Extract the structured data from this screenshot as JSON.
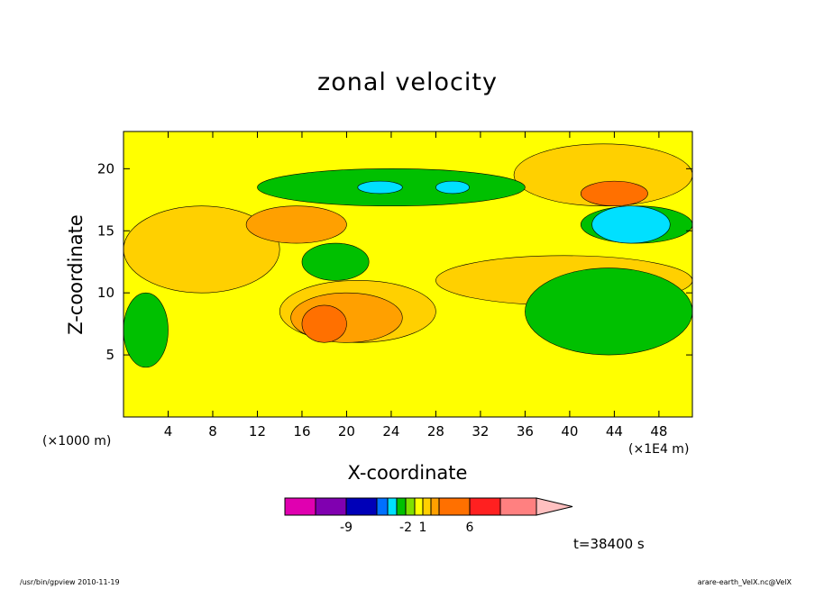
{
  "chart_data": {
    "type": "heatmap",
    "title": "zonal velocity",
    "xlabel": "X-coordinate",
    "ylabel": "Z-coordinate",
    "x_unit_label": "(×1E4 m)",
    "y_unit_label": "(×1000 m)",
    "xlim": [
      0,
      51
    ],
    "ylim": [
      0,
      23
    ],
    "x_ticks": [
      "4",
      "8",
      "12",
      "16",
      "20",
      "24",
      "28",
      "32",
      "36",
      "40",
      "44",
      "48"
    ],
    "y_ticks": [
      "5",
      "10",
      "15",
      "20"
    ],
    "colorbar": {
      "colors": [
        "#e000b0",
        "#8000b0",
        "#0000b8",
        "#0070ff",
        "#00e0ff",
        "#00c000",
        "#80e000",
        "#ffff00",
        "#ffd000",
        "#ffa000",
        "#ff7000",
        "#ff2020",
        "#ff8080",
        "#ffc0c0"
      ],
      "labels": [
        "-9",
        "-2",
        "1",
        "6"
      ]
    },
    "regions": [
      {
        "level": "0 to 1",
        "x": [
          0,
          51
        ],
        "z": [
          0,
          23
        ]
      },
      {
        "level": "1 to 2",
        "x": [
          0,
          14
        ],
        "z": [
          10,
          17
        ]
      },
      {
        "level": "1 to 2",
        "x": [
          14,
          28
        ],
        "z": [
          6,
          11
        ]
      },
      {
        "level": "1 to 2",
        "x": [
          28,
          51
        ],
        "z": [
          9,
          13
        ]
      },
      {
        "level": "1 to 2",
        "x": [
          35,
          51
        ],
        "z": [
          17,
          22
        ]
      },
      {
        "level": "2 to 3",
        "x": [
          11,
          20
        ],
        "z": [
          14,
          17
        ]
      },
      {
        "level": "2 to 3",
        "x": [
          15,
          25
        ],
        "z": [
          6,
          10
        ]
      },
      {
        "level": "3 to 4",
        "x": [
          16,
          20
        ],
        "z": [
          6,
          9
        ]
      },
      {
        "level": "3 to 4",
        "x": [
          41,
          47
        ],
        "z": [
          17,
          19
        ]
      },
      {
        "level": "-1 to 0",
        "x": [
          0,
          4
        ],
        "z": [
          4,
          10
        ]
      },
      {
        "level": "-1 to 0",
        "x": [
          36,
          51
        ],
        "z": [
          5,
          12
        ]
      },
      {
        "level": "-1 to 0",
        "x": [
          16,
          22
        ],
        "z": [
          11,
          14
        ]
      },
      {
        "level": "-1 to 0",
        "x": [
          12,
          36
        ],
        "z": [
          17,
          20
        ]
      },
      {
        "level": "-1 to 0",
        "x": [
          41,
          51
        ],
        "z": [
          14,
          17
        ]
      },
      {
        "level": "-2 to -1",
        "x": [
          42,
          49
        ],
        "z": [
          14,
          17
        ]
      },
      {
        "level": "-2 to -1",
        "x": [
          21,
          25
        ],
        "z": [
          18,
          19
        ]
      },
      {
        "level": "-2 to -1",
        "x": [
          28,
          31
        ],
        "z": [
          18,
          19
        ]
      }
    ],
    "annotation": "t=38400 s"
  },
  "footer": {
    "left": "/usr/bin/gpview   2010-11-19",
    "right": "arare-earth_VelX.nc@VelX"
  }
}
